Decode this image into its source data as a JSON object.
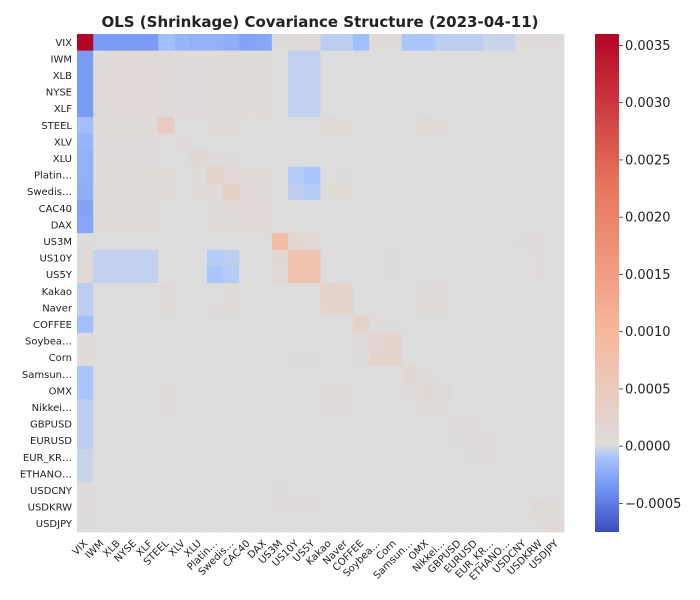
{
  "chart_data": {
    "type": "heatmap",
    "title": "OLS (Shrinkage) Covariance Structure (2023-04-11)",
    "labels": [
      "VIX",
      "IWM",
      "XLB",
      "NYSE",
      "XLF",
      "STEEL",
      "XLV",
      "XLU",
      "Platin…",
      "Swedis…",
      "CAC40",
      "DAX",
      "US3M",
      "US10Y",
      "US5Y",
      "Kakao",
      "Naver",
      "COFFEE",
      "Soybea…",
      "Corn",
      "Samsun…",
      "OMX",
      "Nikkei…",
      "GBPUSD",
      "EURUSD",
      "EUR_KR…",
      "ETHANO…",
      "USDCNY",
      "USDKRW",
      "USDJPY"
    ],
    "xlabels_shown": [
      "VIX",
      "IWM",
      "XLB",
      "NYSE",
      "XLF",
      "STEEL",
      "XLV",
      "XLU",
      "Platin…",
      "Swedis…",
      "CAC40",
      "DAX",
      "US3M",
      "US10Y",
      "US5Y",
      "Kakao",
      "Naver",
      "COFFEE",
      "Soybea…",
      "Corn",
      "Samsun…",
      "OMX",
      "Nikkei…",
      "GBPUSD",
      "EURUSD",
      "EUR_KR…",
      "ETHANO…",
      "USDCNY",
      "USDKRW",
      "USDJPY"
    ],
    "colorbar": {
      "vmin": -0.00075,
      "vmax": 0.0036,
      "ticks": [
        -0.0005,
        0.0,
        0.0005,
        0.001,
        0.0015,
        0.002,
        0.0025,
        0.003,
        0.0035
      ],
      "tick_labels": [
        "−0.0005",
        "0.0000",
        "0.0005",
        "0.0010",
        "0.0015",
        "0.0020",
        "0.0025",
        "0.0030",
        "0.0035"
      ],
      "colormap": [
        "#3b4cc0",
        "#6f92f3",
        "#aac7fd",
        "#dddddd",
        "#f7b89c",
        "#e7745b",
        "#b40426"
      ]
    },
    "diagonal": [
      0.0036,
      5e-05,
      0.0001,
      0.0001,
      0.0001,
      0.00045,
      5e-05,
      0.00015,
      0.0003,
      0.00035,
      0.0001,
      0.0001,
      0.00085,
      0.0007,
      0.0007,
      0.0003,
      0.00025,
      0.0003,
      0.0002,
      0.00025,
      0.00015,
      0.00015,
      5e-05,
      5e-05,
      5e-05,
      5e-05,
      0.0,
      0.0,
      0.0001,
      0.0001
    ],
    "entries": [
      [
        0,
        1,
        -0.00032
      ],
      [
        0,
        2,
        -0.00032
      ],
      [
        0,
        3,
        -0.00032
      ],
      [
        0,
        4,
        -0.00032
      ],
      [
        0,
        5,
        -0.00012
      ],
      [
        0,
        6,
        -0.00018
      ],
      [
        0,
        7,
        -0.0002
      ],
      [
        0,
        8,
        -0.0002
      ],
      [
        0,
        9,
        -0.00022
      ],
      [
        0,
        10,
        -0.00028
      ],
      [
        0,
        11,
        -0.00026
      ],
      [
        0,
        12,
        3e-05
      ],
      [
        0,
        13,
        8e-05
      ],
      [
        0,
        14,
        0.0001
      ],
      [
        0,
        15,
        -5e-05
      ],
      [
        0,
        16,
        -5e-05
      ],
      [
        0,
        17,
        -0.00012
      ],
      [
        0,
        18,
        6e-05
      ],
      [
        0,
        19,
        6e-05
      ],
      [
        0,
        20,
        -8e-05
      ],
      [
        0,
        21,
        -8e-05
      ],
      [
        0,
        22,
        -5e-05
      ],
      [
        0,
        23,
        -5e-05
      ],
      [
        0,
        24,
        -5e-05
      ],
      [
        0,
        25,
        -3e-05
      ],
      [
        0,
        26,
        -3e-05
      ],
      [
        0,
        27,
        3e-05
      ],
      [
        0,
        28,
        5e-05
      ],
      [
        0,
        29,
        3e-05
      ],
      [
        1,
        2,
        0.0001
      ],
      [
        1,
        3,
        0.0001
      ],
      [
        1,
        4,
        9e-05
      ],
      [
        1,
        5,
        7e-05
      ],
      [
        1,
        6,
        5e-05
      ],
      [
        1,
        7,
        5e-05
      ],
      [
        1,
        8,
        6e-05
      ],
      [
        1,
        9,
        7e-05
      ],
      [
        1,
        10,
        6e-05
      ],
      [
        1,
        11,
        6e-05
      ],
      [
        1,
        13,
        -4e-05
      ],
      [
        1,
        14,
        -4e-05
      ],
      [
        2,
        3,
        0.0001
      ],
      [
        2,
        4,
        0.0001
      ],
      [
        2,
        5,
        8e-05
      ],
      [
        2,
        6,
        5e-05
      ],
      [
        2,
        7,
        5e-05
      ],
      [
        2,
        8,
        7e-05
      ],
      [
        2,
        9,
        7e-05
      ],
      [
        2,
        10,
        6e-05
      ],
      [
        2,
        11,
        6e-05
      ],
      [
        2,
        13,
        -4e-05
      ],
      [
        2,
        14,
        -4e-05
      ],
      [
        3,
        4,
        0.0001
      ],
      [
        3,
        5,
        8e-05
      ],
      [
        3,
        6,
        5e-05
      ],
      [
        3,
        7,
        5e-05
      ],
      [
        3,
        8,
        7e-05
      ],
      [
        3,
        9,
        7e-05
      ],
      [
        3,
        10,
        6e-05
      ],
      [
        3,
        11,
        6e-05
      ],
      [
        3,
        13,
        -4e-05
      ],
      [
        3,
        14,
        -4e-05
      ],
      [
        4,
        5,
        8e-05
      ],
      [
        4,
        6,
        5e-05
      ],
      [
        4,
        7,
        5e-05
      ],
      [
        4,
        8,
        6e-05
      ],
      [
        4,
        9,
        6e-05
      ],
      [
        4,
        10,
        6e-05
      ],
      [
        4,
        11,
        6e-05
      ],
      [
        4,
        13,
        -4e-05
      ],
      [
        4,
        14,
        -4e-05
      ],
      [
        5,
        8,
        8e-05
      ],
      [
        5,
        9,
        8e-05
      ],
      [
        5,
        15,
        7e-05
      ],
      [
        5,
        16,
        6e-05
      ],
      [
        5,
        21,
        7e-05
      ],
      [
        5,
        22,
        5e-05
      ],
      [
        7,
        8,
        5e-05
      ],
      [
        7,
        9,
        4e-05
      ],
      [
        8,
        9,
        0.0001
      ],
      [
        8,
        10,
        7e-05
      ],
      [
        8,
        11,
        7e-05
      ],
      [
        8,
        13,
        -6e-05
      ],
      [
        8,
        14,
        -8e-05
      ],
      [
        8,
        16,
        4e-05
      ],
      [
        9,
        10,
        0.0001
      ],
      [
        9,
        11,
        9e-05
      ],
      [
        9,
        13,
        -5e-05
      ],
      [
        9,
        14,
        -6e-05
      ],
      [
        9,
        15,
        6e-05
      ],
      [
        9,
        16,
        6e-05
      ],
      [
        10,
        11,
        0.00012
      ],
      [
        12,
        13,
        0.00015
      ],
      [
        12,
        14,
        0.00012
      ],
      [
        12,
        27,
        4e-05
      ],
      [
        12,
        28,
        5e-05
      ],
      [
        13,
        14,
        0.0007
      ],
      [
        13,
        19,
        4e-05
      ],
      [
        13,
        28,
        5e-05
      ],
      [
        14,
        19,
        4e-05
      ],
      [
        14,
        28,
        5e-05
      ],
      [
        15,
        16,
        0.00025
      ],
      [
        15,
        21,
        6e-05
      ],
      [
        15,
        22,
        5e-05
      ],
      [
        16,
        21,
        6e-05
      ],
      [
        16,
        22,
        5e-05
      ],
      [
        17,
        18,
        5e-05
      ],
      [
        17,
        19,
        4e-05
      ],
      [
        18,
        19,
        0.00025
      ],
      [
        20,
        21,
        5e-05
      ],
      [
        21,
        22,
        8e-05
      ],
      [
        23,
        24,
        3e-05
      ],
      [
        24,
        25,
        3e-05
      ],
      [
        28,
        29,
        4e-05
      ]
    ]
  }
}
